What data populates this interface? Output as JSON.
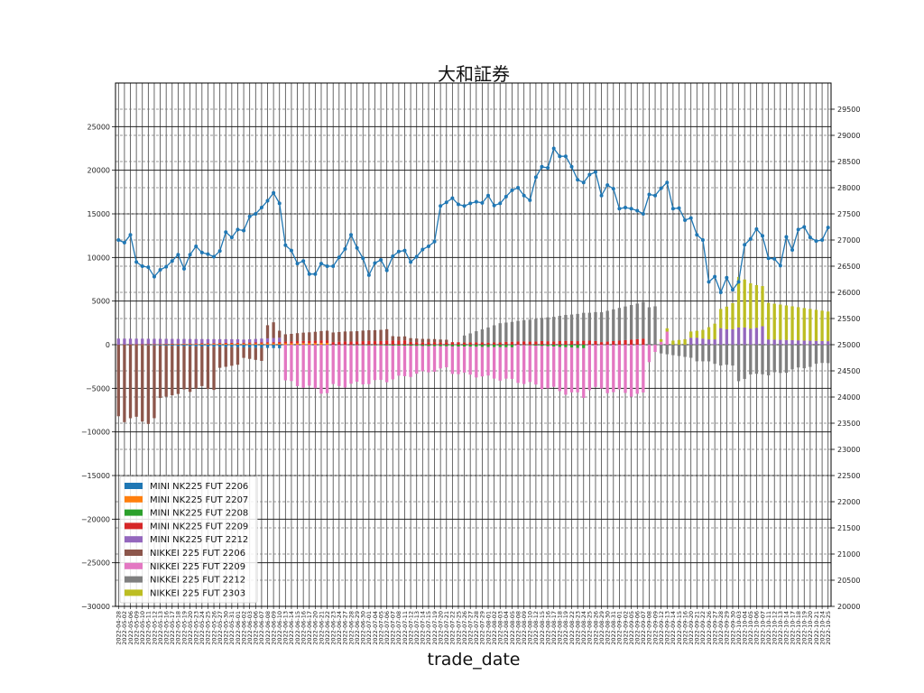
{
  "chart_data": {
    "type": "bar",
    "title": "大和証券",
    "xlabel": "trade_date",
    "ylabel": "",
    "ylim": [
      -30000,
      30000
    ],
    "ylim_right": [
      20000,
      30000
    ],
    "yticks_left": [
      -30000,
      -25000,
      -20000,
      -15000,
      -10000,
      -5000,
      0,
      5000,
      10000,
      15000,
      20000,
      25000
    ],
    "yticks_right": [
      20000,
      20500,
      21000,
      21500,
      22000,
      22500,
      23000,
      23500,
      24000,
      24500,
      25000,
      25500,
      26000,
      26500,
      27000,
      27500,
      28000,
      28500,
      29000,
      29500
    ],
    "grid": true,
    "legend_position": "lower-left",
    "x": [
      "2022-04-28",
      "2022-05-02",
      "2022-05-06",
      "2022-05-09",
      "2022-05-10",
      "2022-05-11",
      "2022-05-12",
      "2022-05-13",
      "2022-05-16",
      "2022-05-17",
      "2022-05-18",
      "2022-05-19",
      "2022-05-20",
      "2022-05-23",
      "2022-05-24",
      "2022-05-25",
      "2022-05-26",
      "2022-05-27",
      "2022-05-30",
      "2022-05-31",
      "2022-06-01",
      "2022-06-02",
      "2022-06-03",
      "2022-06-06",
      "2022-06-07",
      "2022-06-08",
      "2022-06-09",
      "2022-06-10",
      "2022-06-13",
      "2022-06-14",
      "2022-06-15",
      "2022-06-16",
      "2022-06-17",
      "2022-06-20",
      "2022-06-21",
      "2022-06-22",
      "2022-06-23",
      "2022-06-24",
      "2022-06-27",
      "2022-06-28",
      "2022-06-29",
      "2022-06-30",
      "2022-07-01",
      "2022-07-04",
      "2022-07-05",
      "2022-07-06",
      "2022-07-07",
      "2022-07-08",
      "2022-07-11",
      "2022-07-12",
      "2022-07-13",
      "2022-07-14",
      "2022-07-15",
      "2022-07-19",
      "2022-07-20",
      "2022-07-21",
      "2022-07-22",
      "2022-07-25",
      "2022-07-26",
      "2022-07-27",
      "2022-07-28",
      "2022-07-29",
      "2022-08-01",
      "2022-08-02",
      "2022-08-03",
      "2022-08-04",
      "2022-08-05",
      "2022-08-08",
      "2022-08-09",
      "2022-08-10",
      "2022-08-12",
      "2022-08-15",
      "2022-08-16",
      "2022-08-17",
      "2022-08-18",
      "2022-08-19",
      "2022-08-22",
      "2022-08-23",
      "2022-08-24",
      "2022-08-25",
      "2022-08-26",
      "2022-08-29",
      "2022-08-30",
      "2022-08-31",
      "2022-09-01",
      "2022-09-02",
      "2022-09-05",
      "2022-09-06",
      "2022-09-07",
      "2022-09-08",
      "2022-09-09",
      "2022-09-12",
      "2022-09-13",
      "2022-09-14",
      "2022-09-15",
      "2022-09-16",
      "2022-09-20",
      "2022-09-21",
      "2022-09-22",
      "2022-09-26",
      "2022-09-27",
      "2022-09-28",
      "2022-09-29",
      "2022-09-30",
      "2022-10-03",
      "2022-10-04",
      "2022-10-05",
      "2022-10-06",
      "2022-10-07",
      "2022-10-11",
      "2022-10-12",
      "2022-10-13",
      "2022-10-14",
      "2022-10-17",
      "2022-10-18",
      "2022-10-19",
      "2022-10-20",
      "2022-10-21",
      "2022-10-24",
      "2022-10-25"
    ],
    "series": [
      {
        "name": "MINI NK225 FUT 2206",
        "color": "#1f77b4",
        "segments": [
          [
            0,
            27,
            0,
            0,
            -400
          ]
        ]
      },
      {
        "name": "MINI NK225 FUT 2207",
        "color": "#ff7f0e",
        "segments": [
          [
            0,
            35,
            0,
            0,
            200
          ]
        ]
      },
      {
        "name": "MINI NK225 FUT 2208",
        "color": "#2ca02c",
        "segments": [
          [
            36,
            66,
            0,
            0,
            -300
          ],
          [
            67,
            78,
            0,
            0,
            -400
          ]
        ]
      },
      {
        "name": "MINI NK225 FUT 2209",
        "color": "#d62728",
        "segments": [
          [
            0,
            27,
            0,
            0,
            150
          ],
          [
            28,
            48,
            200,
            -1,
            500
          ],
          [
            49,
            64,
            300,
            -1,
            250
          ],
          [
            65,
            80,
            350,
            -1,
            450
          ],
          [
            81,
            88,
            300,
            0,
            700
          ]
        ]
      },
      {
        "name": "MINI NK225 FUT 2212",
        "color": "#9467bd",
        "segments": [
          [
            0,
            20,
            700,
            0,
            400
          ],
          [
            21,
            27,
            350,
            0,
            500
          ],
          [
            96,
            100,
            800,
            1,
            600
          ],
          [
            101,
            108,
            1800,
            2,
            2000
          ],
          [
            109,
            119,
            600,
            0,
            400
          ]
        ]
      },
      {
        "name": "NIKKEI 225 FUT 2206",
        "color": "#8c564b",
        "segments": [
          [
            0,
            3,
            -8200,
            1,
            -8700
          ],
          [
            4,
            6,
            -8500,
            1,
            -8700
          ],
          [
            7,
            10,
            -6000,
            0,
            -5500
          ],
          [
            11,
            16,
            -5000,
            1,
            -4700
          ],
          [
            17,
            20,
            -2400,
            0,
            -2000
          ],
          [
            21,
            24,
            -1200,
            0,
            -1500
          ],
          [
            25,
            26,
            1500,
            0,
            1800
          ],
          [
            27,
            35,
            800,
            0,
            1100
          ],
          [
            36,
            45,
            1100,
            0,
            1300
          ],
          [
            46,
            55,
            500,
            0,
            300
          ]
        ]
      },
      {
        "name": "NIKKEI 225 FUT 2209",
        "color": "#e377c2",
        "segments": [
          [
            0,
            27,
            0,
            0,
            0
          ],
          [
            28,
            35,
            -4200,
            1,
            -5500
          ],
          [
            36,
            45,
            -4800,
            1,
            -4000
          ],
          [
            46,
            55,
            -3800,
            1,
            -2500
          ],
          [
            56,
            66,
            -3000,
            1,
            -3800
          ],
          [
            67,
            78,
            -4200,
            1,
            -5500
          ],
          [
            79,
            88,
            -5000,
            1,
            -5800
          ],
          [
            89,
            92,
            -2000,
            0,
            1500
          ]
        ]
      },
      {
        "name": "NIKKEI 225 FUT 2212",
        "color": "#7f7f7f",
        "segments": [
          [
            58,
            64,
            800,
            0,
            2200
          ],
          [
            65,
            78,
            2200,
            0,
            3200
          ],
          [
            79,
            90,
            3200,
            0,
            4400
          ],
          [
            91,
            96,
            -1000,
            0,
            -1500
          ],
          [
            97,
            103,
            -1800,
            1,
            -2500
          ],
          [
            104,
            108,
            -4000,
            1,
            -3200
          ],
          [
            109,
            119,
            -3500,
            1,
            -2000
          ]
        ]
      },
      {
        "name": "NIKKEI 225 FUT 2303",
        "color": "#bcbd22",
        "segments": [
          [
            91,
            97,
            300,
            0,
            800
          ],
          [
            98,
            103,
            1000,
            0,
            3000
          ],
          [
            104,
            108,
            5800,
            0,
            4600
          ],
          [
            109,
            119,
            4200,
            0,
            3400
          ]
        ]
      }
    ],
    "line_series": {
      "name": "",
      "color": "#1f77b4",
      "values": [
        27000,
        26950,
        27100,
        26580,
        26500,
        26480,
        26300,
        26430,
        26490,
        26600,
        26720,
        26450,
        26720,
        26880,
        26760,
        26730,
        26680,
        26790,
        27150,
        27050,
        27200,
        27180,
        27450,
        27500,
        27620,
        27750,
        27900,
        27700,
        26900,
        26800,
        26550,
        26600,
        26350,
        26350,
        26550,
        26500,
        26500,
        26670,
        26830,
        27100,
        26850,
        26650,
        26330,
        26560,
        26620,
        26420,
        26690,
        26780,
        26800,
        26580,
        26680,
        26820,
        26880,
        26970,
        27650,
        27720,
        27800,
        27680,
        27650,
        27700,
        27730,
        27710,
        27850,
        27660,
        27700,
        27830,
        27950,
        28000,
        27850,
        27760,
        28200,
        28400,
        28380,
        28750,
        28600,
        28600,
        28400,
        28150,
        28100,
        28250,
        28300,
        27850,
        28050,
        27980,
        27600,
        27620,
        27600,
        27560,
        27500,
        27870,
        27850,
        27990,
        28100,
        27600,
        27610,
        27380,
        27420,
        27100,
        27000,
        26200,
        26300,
        26000,
        26280,
        26050,
        26200,
        26910,
        27020,
        27210,
        27080,
        26650,
        26640,
        26510,
        27060,
        26810,
        27200,
        27250,
        27050,
        26980,
        27000,
        27240
      ]
    }
  }
}
